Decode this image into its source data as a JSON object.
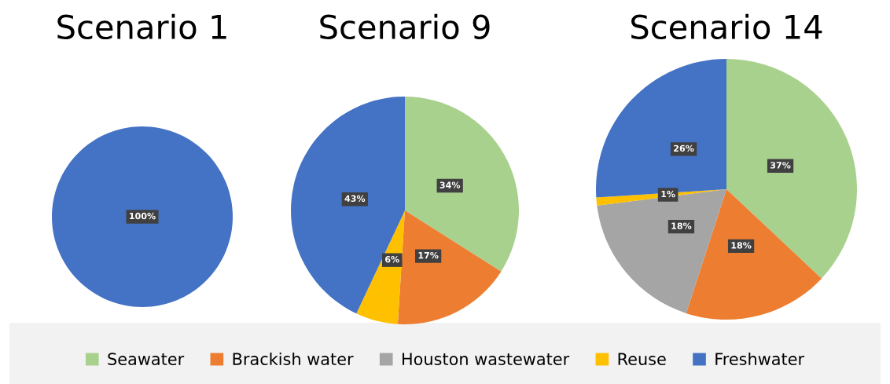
{
  "chart_data": [
    {
      "type": "pie",
      "title": "Scenario 1",
      "categories": [
        null,
        null,
        null,
        null,
        null
      ],
      "values": [
        0,
        0,
        0,
        0,
        100
      ],
      "value_labels": [
        null,
        null,
        null,
        null,
        "100%"
      ],
      "colors": [
        "#a9d18e",
        "#ed7d31",
        "#a5a5a5",
        "#ffc000",
        "#4472c4"
      ]
    },
    {
      "type": "pie",
      "title": "Scenario 9",
      "categories": [
        null,
        null,
        null,
        null,
        null
      ],
      "values": [
        34,
        17,
        0,
        6,
        43
      ],
      "value_labels": [
        "34%",
        "17%",
        null,
        "6%",
        "43%"
      ],
      "colors": [
        "#a9d18e",
        "#ed7d31",
        "#a5a5a5",
        "#ffc000",
        "#4472c4"
      ]
    },
    {
      "type": "pie",
      "title": "Scenario 14",
      "categories": [
        "Seawater",
        "Brackish water",
        "Houston wastewater",
        "Reuse",
        "Freshwater"
      ],
      "values": [
        37,
        18,
        18,
        1,
        26
      ],
      "value_labels": [
        "37%",
        "18%",
        "18%",
        "1%",
        "26%"
      ],
      "colors": [
        "#a9d18e",
        "#ed7d31",
        "#a5a5a5",
        "#ffc000",
        "#4472c4"
      ],
      "legend": "bottom"
    }
  ]
}
